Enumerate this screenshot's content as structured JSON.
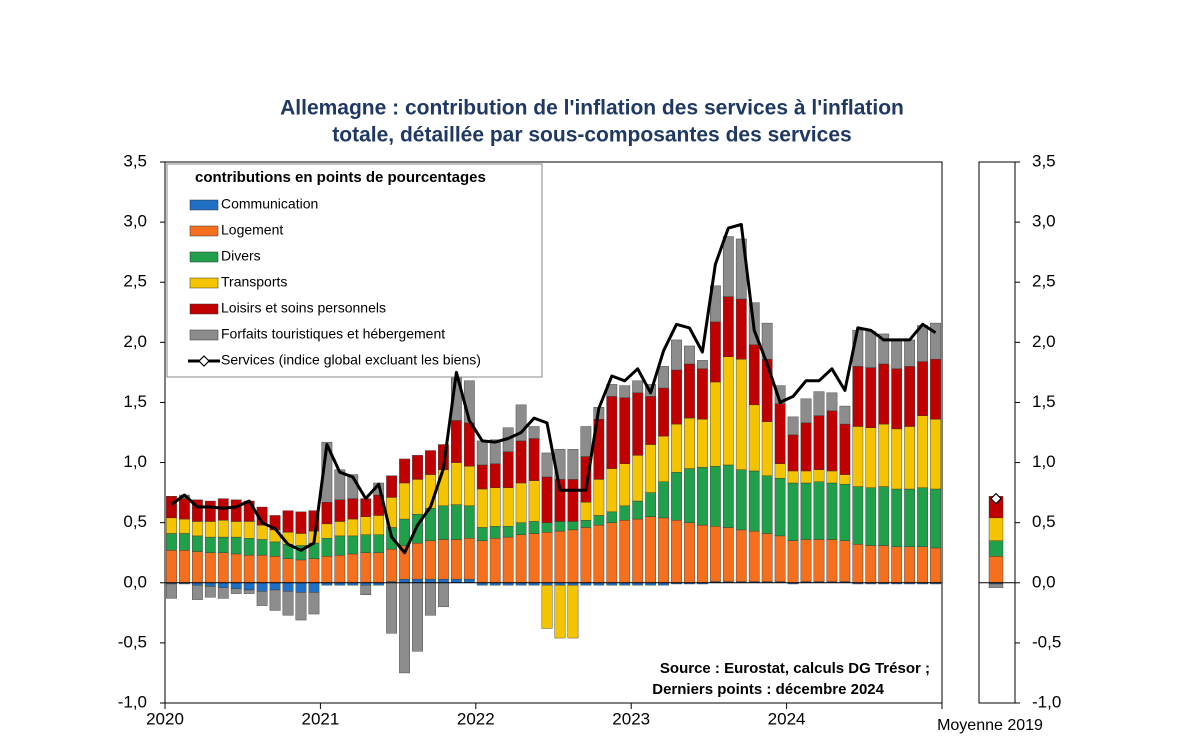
{
  "chart_data": {
    "type": "bar",
    "title": [
      "Allemagne : contribution de l'inflation des services à l'inflation",
      "totale, détaillée par sous-composantes des services"
    ],
    "legend_title": "contributions en points de pourcentages",
    "annotations": [
      "Source : Eurostat, calculs DG Trésor ;",
      "Derniers points : décembre 2024"
    ],
    "categories": [
      "2020",
      null,
      null,
      null,
      null,
      null,
      null,
      null,
      null,
      null,
      null,
      null,
      "2021",
      null,
      null,
      null,
      null,
      null,
      null,
      null,
      null,
      null,
      null,
      null,
      "2022",
      null,
      null,
      null,
      null,
      null,
      null,
      null,
      null,
      null,
      null,
      null,
      "2023",
      null,
      null,
      null,
      null,
      null,
      null,
      null,
      null,
      null,
      null,
      null,
      "2024",
      null,
      null,
      null,
      null,
      null,
      null,
      null,
      null,
      null,
      null,
      null
    ],
    "series": [
      {
        "name": "Communication",
        "color": "#1f6fc5",
        "values": [
          -0.01,
          -0.01,
          -0.02,
          -0.03,
          -0.04,
          -0.05,
          -0.06,
          -0.07,
          -0.06,
          -0.07,
          -0.08,
          -0.08,
          -0.02,
          -0.02,
          -0.02,
          -0.02,
          -0.02,
          0.01,
          0.03,
          0.03,
          0.03,
          0.03,
          0.03,
          0.03,
          -0.02,
          -0.02,
          -0.02,
          -0.02,
          -0.02,
          -0.02,
          -0.02,
          -0.02,
          -0.02,
          -0.02,
          -0.02,
          -0.02,
          -0.02,
          -0.02,
          -0.02,
          -0.01,
          -0.01,
          -0.01,
          0.01,
          0.01,
          0.01,
          0.01,
          0.01,
          0.01,
          -0.01,
          0.01,
          0.01,
          0.01,
          0.01,
          -0.01,
          -0.01,
          -0.01,
          -0.01,
          -0.01,
          -0.01,
          -0.01
        ]
      },
      {
        "name": "Logement",
        "color": "#f4701f",
        "values": [
          0.27,
          0.27,
          0.26,
          0.25,
          0.25,
          0.24,
          0.23,
          0.23,
          0.22,
          0.2,
          0.19,
          0.2,
          0.22,
          0.23,
          0.24,
          0.25,
          0.25,
          0.27,
          0.28,
          0.3,
          0.32,
          0.33,
          0.33,
          0.34,
          0.35,
          0.37,
          0.38,
          0.4,
          0.41,
          0.42,
          0.43,
          0.44,
          0.46,
          0.48,
          0.5,
          0.52,
          0.53,
          0.55,
          0.54,
          0.52,
          0.5,
          0.48,
          0.46,
          0.45,
          0.43,
          0.42,
          0.4,
          0.38,
          0.35,
          0.35,
          0.35,
          0.35,
          0.34,
          0.32,
          0.31,
          0.31,
          0.3,
          0.3,
          0.3,
          0.29
        ]
      },
      {
        "name": "Divers",
        "color": "#20a04b",
        "values": [
          0.14,
          0.14,
          0.13,
          0.13,
          0.13,
          0.14,
          0.14,
          0.13,
          0.12,
          0.12,
          0.12,
          0.13,
          0.15,
          0.16,
          0.15,
          0.15,
          0.15,
          0.18,
          0.22,
          0.24,
          0.27,
          0.28,
          0.29,
          0.27,
          0.11,
          0.1,
          0.09,
          0.1,
          0.1,
          0.08,
          0.08,
          0.07,
          0.06,
          0.08,
          0.09,
          0.12,
          0.15,
          0.2,
          0.3,
          0.4,
          0.45,
          0.48,
          0.5,
          0.52,
          0.5,
          0.5,
          0.48,
          0.48,
          0.48,
          0.47,
          0.48,
          0.47,
          0.47,
          0.48,
          0.48,
          0.49,
          0.48,
          0.48,
          0.49,
          0.49
        ]
      },
      {
        "name": "Transports",
        "color": "#f5c400",
        "values": [
          0.13,
          0.12,
          0.12,
          0.13,
          0.14,
          0.13,
          0.14,
          0.12,
          0.1,
          0.1,
          0.1,
          0.1,
          0.12,
          0.12,
          0.14,
          0.15,
          0.16,
          0.25,
          0.3,
          0.29,
          0.28,
          0.3,
          0.35,
          0.33,
          0.32,
          0.32,
          0.32,
          0.33,
          0.34,
          -0.36,
          -0.44,
          -0.44,
          0.15,
          0.3,
          0.36,
          0.35,
          0.38,
          0.4,
          0.38,
          0.4,
          0.42,
          0.4,
          0.7,
          0.9,
          0.92,
          0.55,
          0.45,
          0.12,
          0.1,
          0.1,
          0.1,
          0.1,
          0.08,
          0.5,
          0.5,
          0.52,
          0.5,
          0.52,
          0.6,
          0.58
        ]
      },
      {
        "name": "Loisirs et soins personnels",
        "color": "#c00000",
        "values": [
          0.18,
          0.17,
          0.18,
          0.17,
          0.18,
          0.18,
          0.17,
          0.15,
          0.12,
          0.18,
          0.18,
          0.17,
          0.18,
          0.18,
          0.17,
          0.15,
          0.17,
          0.18,
          0.2,
          0.2,
          0.2,
          0.21,
          0.35,
          0.36,
          0.2,
          0.2,
          0.3,
          0.35,
          0.35,
          0.38,
          0.35,
          0.35,
          0.38,
          0.5,
          0.6,
          0.55,
          0.52,
          0.4,
          0.4,
          0.45,
          0.45,
          0.42,
          0.5,
          0.5,
          0.5,
          0.5,
          0.52,
          0.5,
          0.3,
          0.4,
          0.45,
          0.5,
          0.42,
          0.5,
          0.5,
          0.5,
          0.5,
          0.5,
          0.45,
          0.5
        ]
      },
      {
        "name": "Forfaits touristiques et hébergement",
        "color": "#8c8c8c",
        "values": [
          -0.12,
          0.03,
          -0.12,
          -0.09,
          -0.09,
          -0.04,
          -0.03,
          -0.12,
          -0.17,
          -0.2,
          -0.23,
          -0.18,
          0.5,
          0.25,
          0.2,
          -0.08,
          0.1,
          -0.42,
          -0.75,
          -0.57,
          -0.27,
          -0.2,
          0.5,
          0.35,
          0.2,
          0.2,
          0.2,
          0.3,
          0.1,
          0.2,
          0.25,
          0.25,
          0.25,
          0.1,
          0.1,
          0.1,
          0.1,
          0.1,
          0.18,
          0.25,
          0.15,
          0.07,
          0.3,
          0.5,
          0.5,
          0.35,
          0.3,
          0.15,
          0.15,
          0.2,
          0.2,
          0.15,
          0.15,
          0.3,
          0.3,
          0.25,
          0.25,
          0.22,
          0.3,
          0.3
        ]
      }
    ],
    "line": {
      "name": "Services (indice global excluant les biens)",
      "color": "#000000",
      "values": [
        0.65,
        0.73,
        0.63,
        0.63,
        0.62,
        0.63,
        0.68,
        0.5,
        0.45,
        0.32,
        0.27,
        0.33,
        1.15,
        0.92,
        0.88,
        0.7,
        0.82,
        0.38,
        0.25,
        0.48,
        0.63,
        0.95,
        1.75,
        1.35,
        1.18,
        1.17,
        1.2,
        1.25,
        1.37,
        1.33,
        0.77,
        0.77,
        0.77,
        1.45,
        1.72,
        1.68,
        1.78,
        1.58,
        1.93,
        2.15,
        2.12,
        1.92,
        2.65,
        2.95,
        2.98,
        2.1,
        1.82,
        1.5,
        1.55,
        1.68,
        1.68,
        1.78,
        1.6,
        2.12,
        2.1,
        2.02,
        2.02,
        2.02,
        2.15,
        2.08
      ]
    },
    "side": {
      "label": "Moyenne 2019",
      "values": [
        -0.01,
        0.22,
        0.13,
        0.19,
        0.18,
        -0.03
      ],
      "line_value": 0.7
    },
    "ylim": [
      -1.0,
      3.5
    ],
    "yticks": [
      {
        "value": -1.0,
        "label": "-1,0"
      },
      {
        "value": -0.5,
        "label": "-0,5"
      },
      {
        "value": 0,
        "label": "0,0"
      },
      {
        "value": 0.5,
        "label": "0,5"
      },
      {
        "value": 1.0,
        "label": "1,0"
      },
      {
        "value": 1.5,
        "label": "1,5"
      },
      {
        "value": 2.0,
        "label": "2,0"
      },
      {
        "value": 2.5,
        "label": "2,5"
      },
      {
        "value": 3.0,
        "label": "3,0"
      },
      {
        "value": 3.5,
        "label": "3,5"
      }
    ]
  }
}
